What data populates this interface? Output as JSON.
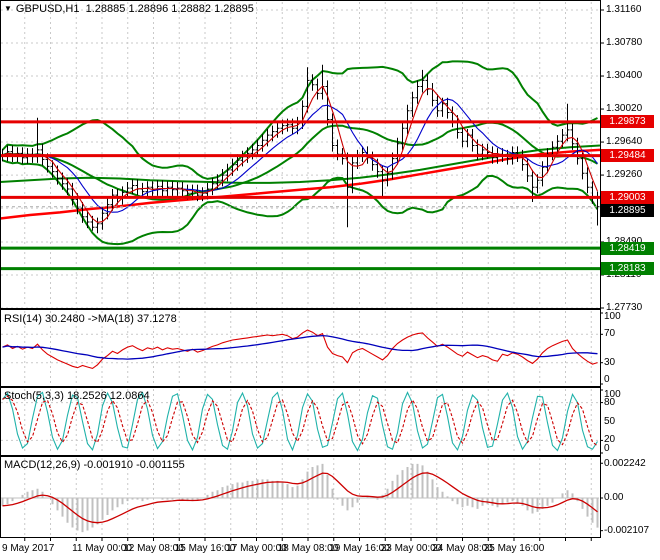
{
  "header": {
    "symbol": "GBPUSD,H1",
    "quotes": "1.28885 1.28896 1.28882 1.28895"
  },
  "icons": {
    "dropdown": "▼"
  },
  "panels": {
    "rsi_label": "RSI(14) 30.2480  ->MA(18) 37.1278",
    "stoch_label": "Stoch(5,3,3) 18.2526 12.0864",
    "macd_label": "MACD(12,26,9) -0.001910 -0.001155"
  },
  "price_axis": {
    "ticks": [
      "1.31160",
      "1.30780",
      "1.30400",
      "1.30020",
      "1.29640",
      "1.29260",
      "1.28880",
      "1.28490",
      "1.28110",
      "1.27730"
    ],
    "badges": [
      {
        "value": "1.29873",
        "type": "resistance"
      },
      {
        "value": "1.29484",
        "type": "resistance"
      },
      {
        "value": "1.29003",
        "type": "resistance"
      },
      {
        "value": "1.28895",
        "type": "current"
      },
      {
        "value": "1.28419",
        "type": "support"
      },
      {
        "value": "1.28183",
        "type": "support"
      }
    ]
  },
  "indicator_axes": {
    "rsi": [
      "100",
      "70",
      "30",
      "0"
    ],
    "stoch": [
      "100",
      "80",
      "50",
      "20",
      "0"
    ],
    "macd": [
      "0.002242",
      "0.00",
      "-0.002107"
    ]
  },
  "time_axis": {
    "labels": [
      "9 May 2017",
      "11 May 00:00",
      "12 May 08:00",
      "15 May 16:00",
      "17 May 00:00",
      "18 May 08:00",
      "19 May 16:00",
      "23 May 00:00",
      "24 May 08:00",
      "25 May 16:00"
    ]
  },
  "colors": {
    "grid": "#c9c9c9",
    "panel_border": "#000000",
    "candle": "#000000",
    "bollinger": "#008000",
    "long_ma_red": "#ff0000",
    "long_ma_green": "#008000",
    "sma_fast_red": "#cc0000",
    "sma_slow_blue": "#0000cc",
    "resistance": "#e60000",
    "support": "#008000",
    "current_badge": "#000000",
    "current_line": "#aaaaaa",
    "rsi_line": "#dd0000",
    "rsi_ma": "#0000bb",
    "stoch_k": "#20b2aa",
    "stoch_d": "#cc0000",
    "macd_hist": "#c0c0c0",
    "macd_signal": "#cc0000"
  },
  "chart_data": [
    {
      "type": "candlestick",
      "panel": "price",
      "title": "GBPUSD,H1",
      "ylim": [
        1.2773,
        1.3116
      ],
      "grid_step": 0.0038,
      "closes": [
        1.2949,
        1.2953,
        1.2948,
        1.2951,
        1.2946,
        1.295,
        1.2947,
        1.2955,
        1.2944,
        1.2936,
        1.293,
        1.2922,
        1.2916,
        1.291,
        1.2898,
        1.2888,
        1.2878,
        1.2872,
        1.2866,
        1.287,
        1.2882,
        1.2892,
        1.2903,
        1.2899,
        1.2906,
        1.2911,
        1.2914,
        1.291,
        1.2907,
        1.2912,
        1.2909,
        1.2913,
        1.2908,
        1.2912,
        1.2909,
        1.2911,
        1.2908,
        1.2905,
        1.2908,
        1.2903,
        1.2905,
        1.291,
        1.2916,
        1.292,
        1.2926,
        1.2932,
        1.2938,
        1.2943,
        1.2947,
        1.2951,
        1.2955,
        1.296,
        1.2966,
        1.2972,
        1.2976,
        1.298,
        1.2983,
        1.2984,
        1.298,
        1.2986,
        1.3005,
        1.3035,
        1.303,
        1.302,
        1.3028,
        1.299,
        1.296,
        1.295,
        1.2945,
        1.2912,
        1.294,
        1.2948,
        1.2952,
        1.2946,
        1.2938,
        1.293,
        1.292,
        1.2928,
        1.2945,
        1.2962,
        1.298,
        1.3,
        1.3015,
        1.3028,
        1.3035,
        1.3025,
        1.3012,
        1.3,
        1.3008,
        1.2998,
        1.2988,
        1.2975,
        1.2965,
        1.2972,
        1.296,
        1.295,
        1.2955,
        1.2952,
        1.2946,
        1.295,
        1.2948,
        1.2945,
        1.2952,
        1.2948,
        1.2938,
        1.2925,
        1.2912,
        1.292,
        1.2935,
        1.295,
        1.2958,
        1.2965,
        1.2972,
        1.2978,
        1.2962,
        1.2945,
        1.2928,
        1.2912,
        1.29,
        1.28895
      ],
      "wick_default": 0.0007,
      "wick_overrides": {
        "7": {
          "high": 1.2992
        },
        "18": {
          "low": 1.2862
        },
        "61": {
          "high": 1.305
        },
        "64": {
          "high": 1.3053
        },
        "69": {
          "low": 1.2866
        },
        "76": {
          "low": 1.29
        },
        "84": {
          "high": 1.3047
        },
        "106": {
          "low": 1.2895
        },
        "113": {
          "high": 1.3008
        },
        "119": {
          "low": 1.2868
        }
      },
      "overlays": {
        "bollinger": {
          "window": 20,
          "k": 2.0,
          "pad": 0.0006
        },
        "sma_fast_period": 4,
        "sma_slow_period": 9,
        "long_ma_red": [
          1.2876,
          1.288,
          1.2883,
          1.2887,
          1.289,
          1.2894,
          1.2897,
          1.29,
          1.2903,
          1.2906,
          1.2909,
          1.2912,
          1.2916,
          1.2921,
          1.2927,
          1.2933,
          1.2939,
          1.2945,
          1.295,
          1.2953,
          1.2955
        ],
        "long_ma_green": [
          1.2918,
          1.292,
          1.2922,
          1.2923,
          1.2922,
          1.292,
          1.2919,
          1.2918,
          1.2917,
          1.2917,
          1.2918,
          1.292,
          1.2923,
          1.2927,
          1.2932,
          1.2938,
          1.2944,
          1.295,
          1.2955,
          1.2958,
          1.296
        ]
      },
      "levels": {
        "resistance": [
          1.29873,
          1.29484,
          1.29003
        ],
        "support": [
          1.28419,
          1.28183
        ],
        "current_price": 1.28895
      }
    },
    {
      "type": "line",
      "panel": "rsi",
      "name": "RSI(14)",
      "last": 30.248,
      "ma_period": 18,
      "ma_last": 37.1278,
      "ylim": [
        0,
        100
      ],
      "levels": [
        70,
        30
      ],
      "values": [
        52,
        55,
        50,
        53,
        49,
        52,
        50,
        56,
        48,
        42,
        38,
        34,
        31,
        28,
        25,
        23,
        26,
        24,
        22,
        27,
        35,
        40,
        46,
        43,
        48,
        52,
        54,
        50,
        47,
        51,
        49,
        52,
        48,
        51,
        49,
        50,
        48,
        46,
        49,
        45,
        47,
        50,
        53,
        55,
        58,
        60,
        62,
        63,
        64,
        65,
        66,
        67,
        68,
        69,
        68,
        69,
        70,
        68,
        64,
        66,
        72,
        76,
        73,
        68,
        71,
        52,
        43,
        40,
        38,
        30,
        44,
        48,
        50,
        46,
        42,
        38,
        34,
        40,
        50,
        57,
        62,
        66,
        69,
        71,
        72,
        65,
        59,
        53,
        56,
        52,
        47,
        42,
        39,
        45,
        41,
        37,
        40,
        38,
        34,
        32,
        42,
        40,
        44,
        42,
        38,
        33,
        29,
        35,
        44,
        50,
        54,
        57,
        60,
        62,
        50,
        43,
        37,
        32,
        28,
        30.2
      ]
    },
    {
      "type": "line",
      "panel": "stoch",
      "name": "Stoch(5,3,3)",
      "k_last": 18.2526,
      "d_last": 12.0864,
      "d_period": 3,
      "ylim": [
        0,
        100
      ],
      "levels": [
        80,
        20
      ],
      "values": [
        85,
        95,
        70,
        30,
        8,
        15,
        55,
        90,
        96,
        65,
        25,
        6,
        20,
        60,
        92,
        88,
        50,
        15,
        5,
        30,
        75,
        95,
        80,
        40,
        10,
        8,
        45,
        85,
        96,
        70,
        28,
        7,
        18,
        58,
        90,
        94,
        60,
        20,
        5,
        25,
        70,
        93,
        85,
        45,
        12,
        6,
        35,
        80,
        95,
        75,
        30,
        8,
        15,
        52,
        88,
        96,
        68,
        22,
        5,
        28,
        72,
        94,
        82,
        38,
        9,
        12,
        48,
        86,
        95,
        62,
        18,
        4,
        22,
        64,
        91,
        87,
        44,
        10,
        6,
        32,
        78,
        96,
        79,
        35,
        8,
        14,
        50,
        88,
        93,
        58,
        16,
        5,
        26,
        68,
        92,
        84,
        40,
        9,
        11,
        46,
        84,
        95,
        72,
        26,
        6,
        18,
        56,
        90,
        89,
        48,
        12,
        4,
        24,
        66,
        93,
        80,
        36,
        10,
        6,
        18.25
      ]
    },
    {
      "type": "bar+line",
      "panel": "macd",
      "name": "MACD(12,26,9)",
      "macd_last": -0.00191,
      "signal_last": -0.001155,
      "signal_period": 9,
      "ylim": [
        -0.00225,
        0.00235
      ],
      "values": [
        -0.0005,
        -0.0004,
        -0.0002,
        0.0,
        0.0002,
        0.0004,
        0.0005,
        0.0006,
        0.0004,
        0.0,
        -0.0004,
        -0.0008,
        -0.0012,
        -0.0016,
        -0.0019,
        -0.0021,
        -0.0022,
        -0.0021,
        -0.0019,
        -0.0017,
        -0.0014,
        -0.0011,
        -0.0008,
        -0.0006,
        -0.0004,
        -0.0002,
        -0.0001,
        -0.0001,
        -0.0002,
        -0.0001,
        0.0,
        0.0,
        -0.0001,
        -0.0001,
        -0.0001,
        0.0,
        -0.0001,
        -0.0002,
        -0.0002,
        -0.0001,
        0.0,
        0.0002,
        0.0004,
        0.0005,
        0.0007,
        0.0008,
        0.0009,
        0.001,
        0.001,
        0.0011,
        0.0011,
        0.0012,
        0.0012,
        0.0012,
        0.0011,
        0.0011,
        0.001,
        0.0009,
        0.0007,
        0.0008,
        0.0012,
        0.0017,
        0.002,
        0.0021,
        0.0022,
        0.0015,
        0.0006,
        -0.0001,
        -0.0005,
        -0.0008,
        -0.0006,
        -0.0003,
        0.0,
        0.0001,
        0.0,
        -0.0001,
        0.0002,
        0.0006,
        0.0011,
        0.0015,
        0.0018,
        0.002,
        0.0022,
        0.0022,
        0.0021,
        0.0017,
        0.0012,
        0.0007,
        0.0004,
        0.0001,
        -0.0002,
        -0.0004,
        -0.0006,
        -0.0005,
        -0.0006,
        -0.0007,
        -0.0005,
        -0.0004,
        -0.0005,
        -0.0006,
        -0.0004,
        -0.0003,
        -0.0002,
        -0.0003,
        -0.0005,
        -0.0008,
        -0.001,
        -0.0009,
        -0.0007,
        -0.0005,
        -0.0003,
        0.0,
        0.0003,
        0.0005,
        0.0003,
        -0.0002,
        -0.0007,
        -0.0012,
        -0.0016,
        -0.00191
      ]
    }
  ]
}
